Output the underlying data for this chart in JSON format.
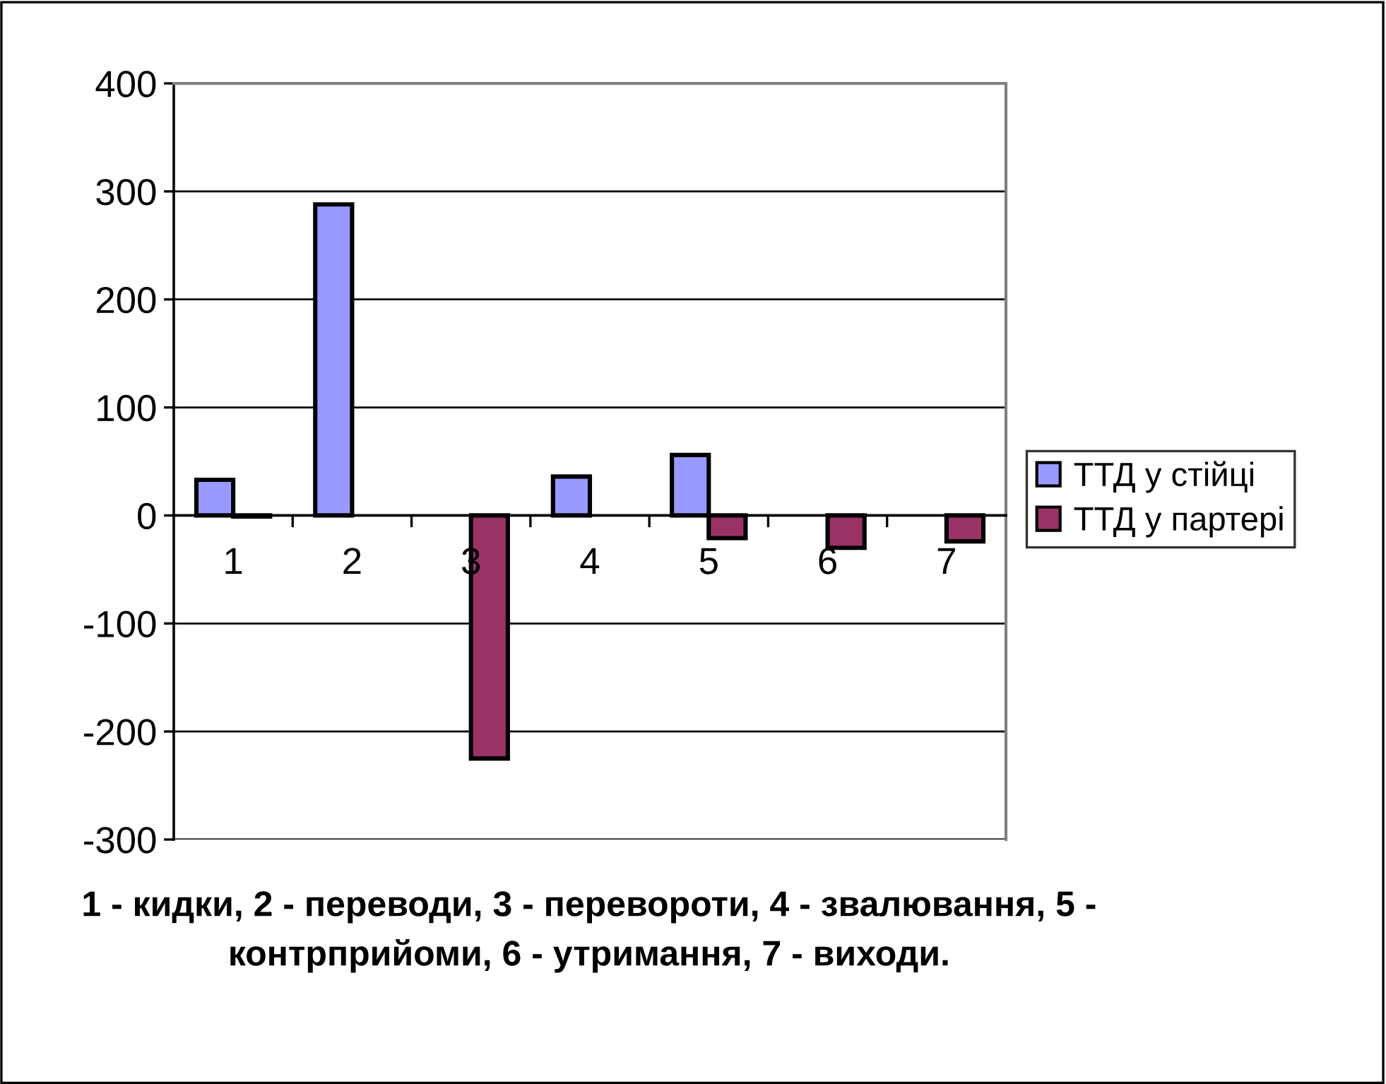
{
  "chart_data": {
    "type": "bar",
    "categories": [
      "1",
      "2",
      "3",
      "4",
      "5",
      "6",
      "7"
    ],
    "series": [
      {
        "name": "ТТД у стійці",
        "color": "#9999ff",
        "values": [
          33,
          288,
          null,
          36,
          56,
          null,
          null
        ]
      },
      {
        "name": "ТТД у партері",
        "color": "#993366",
        "values": [
          -1,
          null,
          -225,
          null,
          -21,
          -30,
          -24
        ]
      }
    ],
    "xlabel": "1 - кидки, 2 - переводи, 3 - перевороти, 4 - звалювання, 5 - контрприйоми, 6 - утримання, 7 - виходи.",
    "ylim": [
      -300,
      400
    ],
    "yticks": [
      -300,
      -200,
      -100,
      0,
      100,
      200,
      300,
      400
    ],
    "grid": "y",
    "legend": "right"
  }
}
